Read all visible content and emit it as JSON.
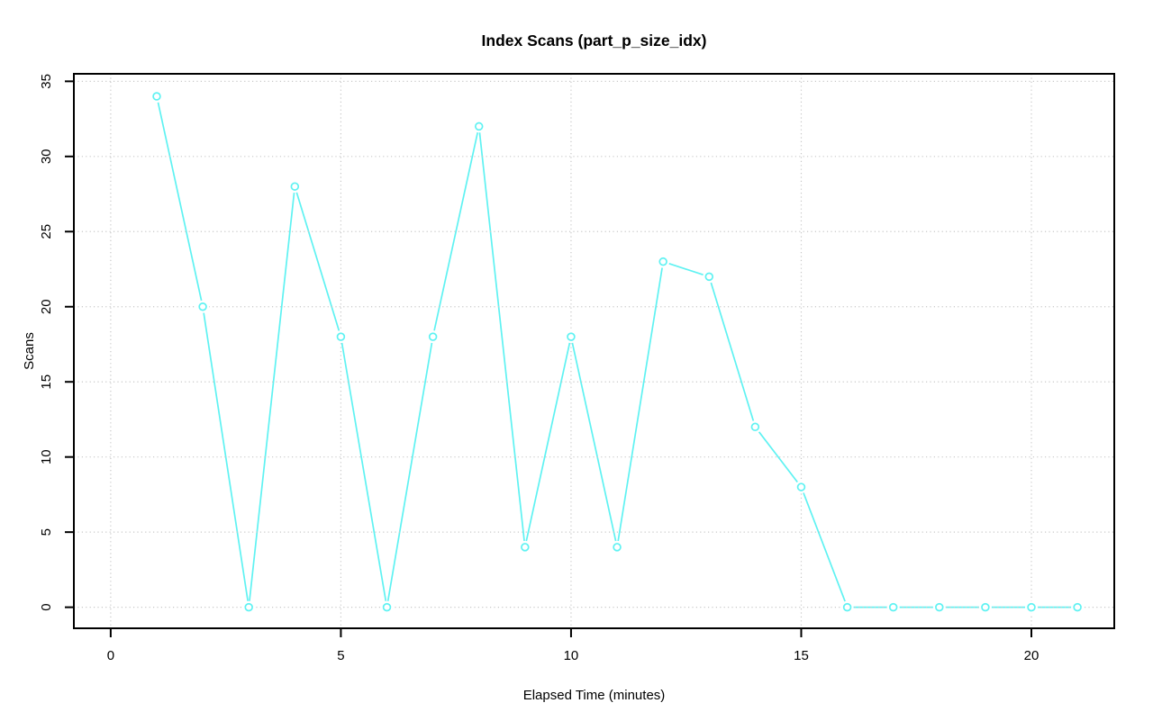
{
  "page": {
    "background": "#FFFFFF"
  },
  "chart_data": {
    "type": "line",
    "title": "Index Scans (part_p_size_idx)",
    "xlabel": "Elapsed Time (minutes)",
    "ylabel": "Scans",
    "x": [
      1,
      2,
      3,
      4,
      5,
      6,
      7,
      8,
      9,
      10,
      11,
      12,
      13,
      14,
      15,
      16,
      17,
      18,
      19,
      20,
      21
    ],
    "y": [
      34,
      20,
      0,
      28,
      18,
      0,
      18,
      32,
      4,
      18,
      4,
      23,
      22,
      12,
      8,
      0,
      0,
      0,
      0,
      0,
      0
    ],
    "x_ticks": [
      0,
      5,
      10,
      15,
      20
    ],
    "y_ticks": [
      0,
      5,
      10,
      15,
      20,
      25,
      30,
      35
    ],
    "xlim": [
      -0.8,
      21.8
    ],
    "ylim": [
      -1.4,
      35.5
    ],
    "grid": "dotted",
    "legend": "none",
    "marker": "open-circle",
    "colors": {
      "series": "#5FF2F2",
      "grid": "#C8C8C8",
      "axis": "#000000",
      "text": "#000000",
      "background": "#FFFFFF"
    }
  }
}
